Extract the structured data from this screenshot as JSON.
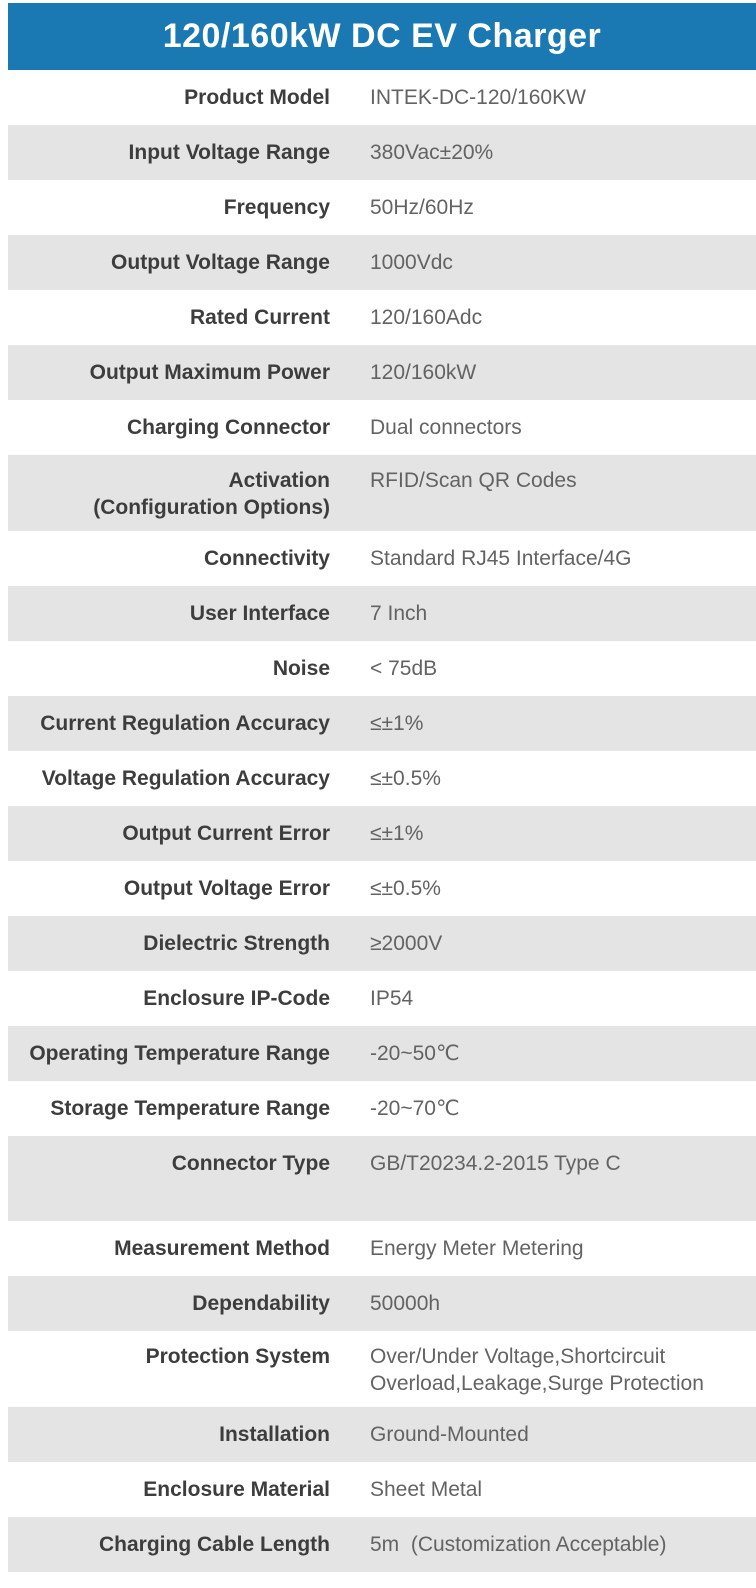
{
  "header": {
    "title": "120/160kW DC EV Charger"
  },
  "colors": {
    "page_bg": "#ffffff",
    "header_bg": "#1a78b2",
    "header_text": "#ffffff",
    "shaded_row_bg": "#e4e4e4",
    "label_text": "#3d3d3d",
    "value_text": "#636363"
  },
  "table": {
    "rows": [
      {
        "label": "Product Model",
        "value": "INTEK-DC-120/160KW"
      },
      {
        "label": "Input Voltage Range",
        "value": "380Vac±20%"
      },
      {
        "label": "Frequency",
        "value": "50Hz/60Hz"
      },
      {
        "label": "Output Voltage Range",
        "value": "1000Vdc"
      },
      {
        "label": "Rated Current",
        "value": "120/160Adc"
      },
      {
        "label": "Output Maximum Power",
        "value": "120/160kW"
      },
      {
        "label": "Charging Connector",
        "value": "Dual connectors"
      },
      {
        "label": "Activation\n(Configuration Options)",
        "value": "RFID/Scan QR Codes"
      },
      {
        "label": "Connectivity",
        "value": "Standard RJ45 Interface/4G"
      },
      {
        "label": "User Interface",
        "value": "7 Inch"
      },
      {
        "label": "Noise",
        "value": "< 75dB"
      },
      {
        "label": "Current Regulation Accuracy",
        "value": "≤±1%"
      },
      {
        "label": "Voltage Regulation Accuracy",
        "value": "≤±0.5%"
      },
      {
        "label": "Output Current Error",
        "value": "≤±1%"
      },
      {
        "label": "Output Voltage Error",
        "value": "≤±0.5%"
      },
      {
        "label": "Dielectric Strength",
        "value": "≥2000V"
      },
      {
        "label": "Enclosure IP-Code",
        "value": "IP54"
      },
      {
        "label": "Operating Temperature Range",
        "value": "-20~50℃"
      },
      {
        "label": "Storage Temperature Range",
        "value": "-20~70℃"
      },
      {
        "label": "Connector Type",
        "value": "GB/T20234.2-2015 Type C"
      },
      {
        "label": "Measurement Method",
        "value": "Energy Meter Metering"
      },
      {
        "label": "Dependability",
        "value": "50000h"
      },
      {
        "label": "Protection System",
        "value": "Over/Under Voltage,Shortcircuit\nOverload,Leakage,Surge Protection"
      },
      {
        "label": "Installation",
        "value": "Ground-Mounted"
      },
      {
        "label": "Enclosure Material",
        "value": "Sheet Metal"
      },
      {
        "label": "Charging Cable Length",
        "value": "5m  (Customization Acceptable)"
      }
    ]
  }
}
